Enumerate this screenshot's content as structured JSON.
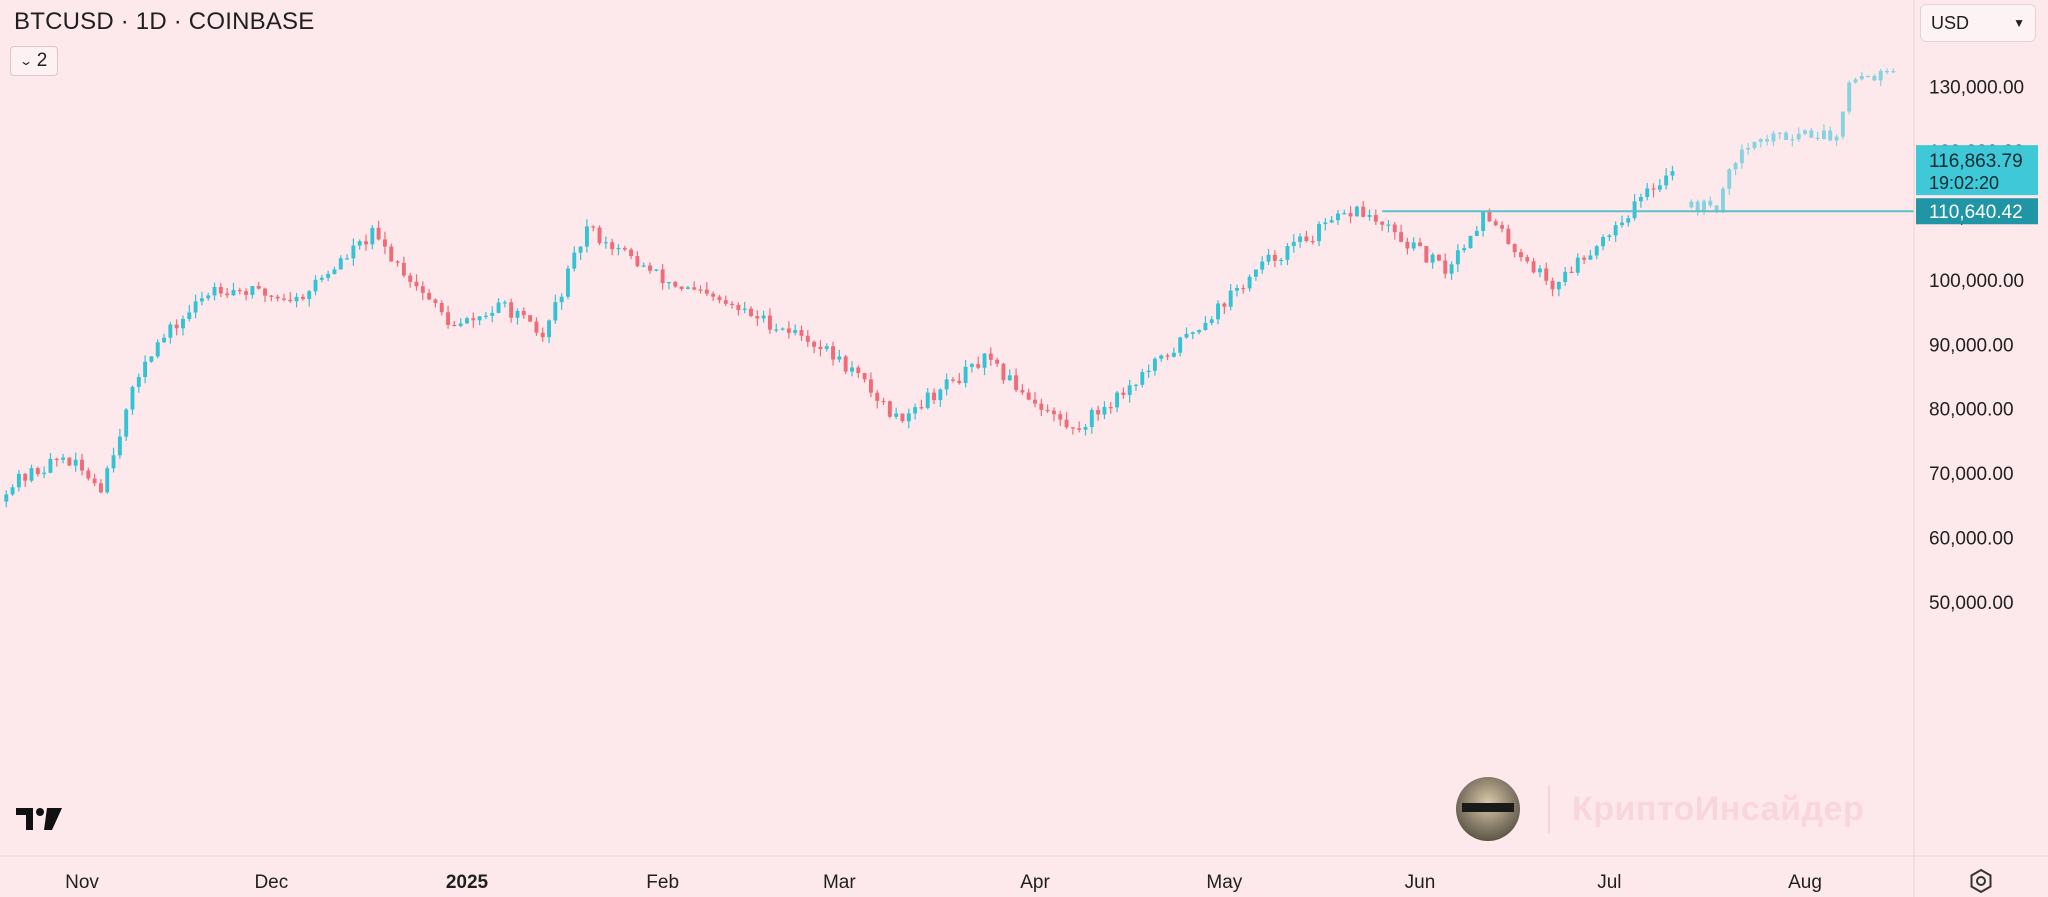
{
  "header": {
    "title": "BTCUSD · 1D · COINBASE",
    "indicator_count": "2"
  },
  "currency_select": {
    "value": "USD"
  },
  "watermark": {
    "text": "КриптоИнсайдер"
  },
  "price_labels": {
    "current_price": "116,863.79",
    "countdown": "19:02:20",
    "level_price": "110,640.42"
  },
  "colors": {
    "background": "#fde9ec",
    "up": "#33c3d3",
    "down": "#ef6b78",
    "projection": "#86d3df",
    "level": "#5bbfc9",
    "current_label_bg": "#3fc8d8",
    "level_label_bg": "#1f95a5"
  },
  "icons": [
    "chevron-down-icon",
    "tradingview-logo",
    "settings-icon"
  ],
  "chart_data": {
    "type": "candlestick",
    "symbol": "BTCUSD",
    "interval": "1D",
    "exchange": "COINBASE",
    "y_axis": {
      "range": [
        40000,
        140000
      ],
      "ticks": [
        50000,
        60000,
        70000,
        80000,
        90000,
        100000,
        110000,
        120000,
        130000
      ],
      "tick_labels": [
        "50,000.00",
        "60,000.00",
        "70,000.00",
        "80,000.00",
        "90,000.00",
        "100,000.00",
        "110,000.00",
        "120,000.00",
        "130,000.00"
      ]
    },
    "x_axis": {
      "labels": [
        "Nov",
        "Dec",
        "2025",
        "Feb",
        "Mar",
        "Apr",
        "May",
        "Jun",
        "Jul",
        "Aug"
      ],
      "bold_labels": [
        "2025"
      ],
      "label_dates": [
        "2024-11-01",
        "2024-12-01",
        "2025-01-01",
        "2025-02-01",
        "2025-03-01",
        "2025-04-01",
        "2025-05-01",
        "2025-06-01",
        "2025-07-01",
        "2025-08-01"
      ]
    },
    "series_key_points": [
      {
        "date": "2024-10-20",
        "close": 67800
      },
      {
        "date": "2024-10-29",
        "close": 72500
      },
      {
        "date": "2024-11-04",
        "close": 68000
      },
      {
        "date": "2024-11-11",
        "close": 88000
      },
      {
        "date": "2024-11-22",
        "close": 99000
      },
      {
        "date": "2024-12-05",
        "close": 97000
      },
      {
        "date": "2024-12-17",
        "close": 107000
      },
      {
        "date": "2024-12-30",
        "close": 92500
      },
      {
        "date": "2025-01-07",
        "close": 96000
      },
      {
        "date": "2025-01-13",
        "close": 91000
      },
      {
        "date": "2025-01-20",
        "close": 108000
      },
      {
        "date": "2025-02-01",
        "close": 100000
      },
      {
        "date": "2025-02-24",
        "close": 91000
      },
      {
        "date": "2025-03-03",
        "close": 86000
      },
      {
        "date": "2025-03-10",
        "close": 78500
      },
      {
        "date": "2025-03-24",
        "close": 87500
      },
      {
        "date": "2025-04-07",
        "close": 76500
      },
      {
        "date": "2025-04-21",
        "close": 87500
      },
      {
        "date": "2025-05-08",
        "close": 103000
      },
      {
        "date": "2025-05-22",
        "close": 111000
      },
      {
        "date": "2025-06-05",
        "close": 101500
      },
      {
        "date": "2025-06-11",
        "close": 110000
      },
      {
        "date": "2025-06-22",
        "close": 99000
      },
      {
        "date": "2025-07-03",
        "close": 109500
      },
      {
        "date": "2025-07-11",
        "close": 117500
      }
    ],
    "projection_key_points": [
      {
        "date": "2025-07-14",
        "close": 111500
      },
      {
        "date": "2025-07-18",
        "close": 111500
      },
      {
        "date": "2025-07-22",
        "close": 121000
      },
      {
        "date": "2025-08-01",
        "close": 123000
      },
      {
        "date": "2025-08-06",
        "close": 122000
      },
      {
        "date": "2025-08-08",
        "close": 131500
      },
      {
        "date": "2025-08-15",
        "close": 132000
      }
    ],
    "horizontal_level": {
      "price": 110640.42,
      "from_date": "2025-05-26"
    },
    "last_price": 116863.79
  }
}
